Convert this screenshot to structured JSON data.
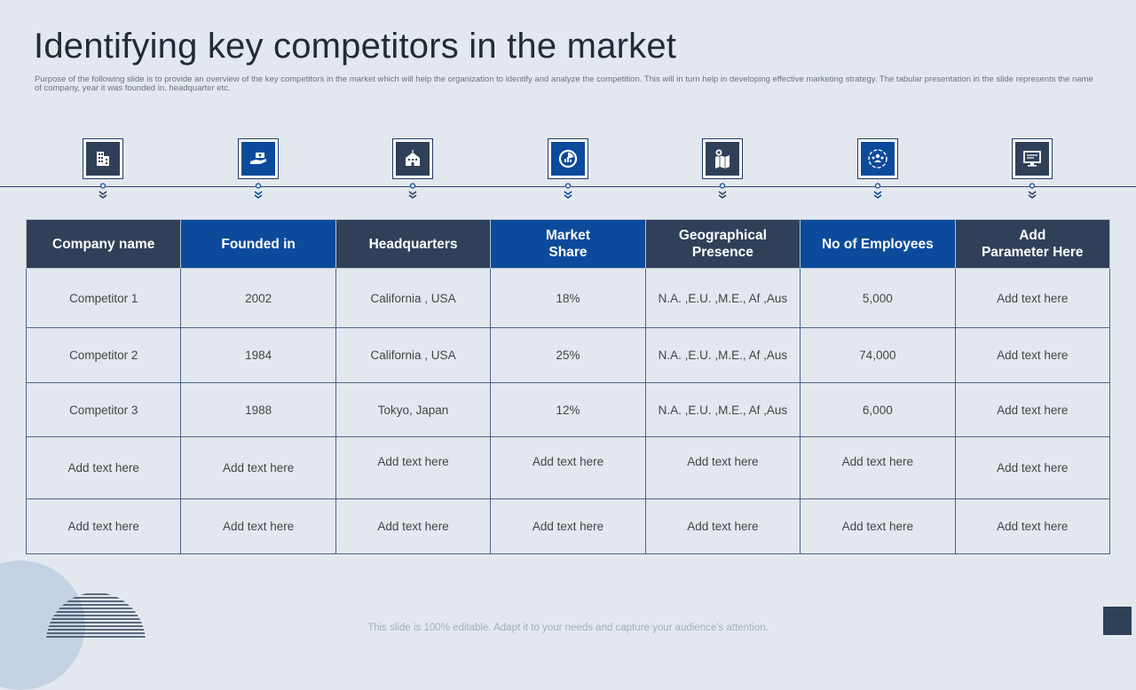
{
  "title": "Identifying key competitors in the market",
  "subtitle": "Purpose of the following slide is to provide an overview of the key competitors in the market  which will help the organization to identify and analyze the competition.  This will in turn help in  developing effective marketing strategy. The tabular presentation in the slide represents the name  of company, year it  was founded in, headquarter etc.",
  "icons": [
    {
      "name": "building-icon",
      "color": "#2f4058"
    },
    {
      "name": "hand-money-icon",
      "color": "#0c4a9c"
    },
    {
      "name": "headquarters-icon",
      "color": "#2f4058"
    },
    {
      "name": "pie-chart-icon",
      "color": "#0c4a9c"
    },
    {
      "name": "location-map-icon",
      "color": "#2f4058"
    },
    {
      "name": "team-network-icon",
      "color": "#0c4a9c"
    },
    {
      "name": "monitor-icon",
      "color": "#2f4058"
    }
  ],
  "table": {
    "headers": [
      {
        "label": "Company name",
        "color": "#2f4058"
      },
      {
        "label": "Founded in",
        "color": "#0c4a9c"
      },
      {
        "label": "Headquarters",
        "color": "#2f4058"
      },
      {
        "label": "Market\nShare",
        "color": "#0c4a9c"
      },
      {
        "label": "Geographical\nPresence",
        "color": "#2f4058"
      },
      {
        "label": "No of Employees",
        "color": "#0c4a9c"
      },
      {
        "label": "Add\nParameter Here",
        "color": "#2f4058"
      }
    ],
    "rows": [
      [
        "Competitor  1",
        "2002",
        "California  , USA",
        "18%",
        "N.A. ,E.U. ,M.E., Af ,Aus",
        "5,000",
        "Add text here"
      ],
      [
        "Competitor  2",
        "1984",
        "California  , USA",
        "25%",
        "N.A. ,E.U. ,M.E., Af ,Aus",
        "74,000",
        "Add text here"
      ],
      [
        "Competitor  3",
        "1988",
        "Tokyo, Japan",
        "12%",
        "N.A. ,E.U. ,M.E., Af ,Aus",
        "6,000",
        "Add text here"
      ],
      [
        "Add text here",
        "Add text here",
        "Add text here",
        "Add text here",
        "Add text here",
        "Add text here",
        "Add text here"
      ],
      [
        "Add text here",
        "Add text here",
        "Add text here",
        "Add text here",
        "Add text here",
        "Add text here",
        "Add text here"
      ]
    ]
  },
  "footer": "This slide is 100% editable. Adapt it to your needs and capture your audience's attention."
}
